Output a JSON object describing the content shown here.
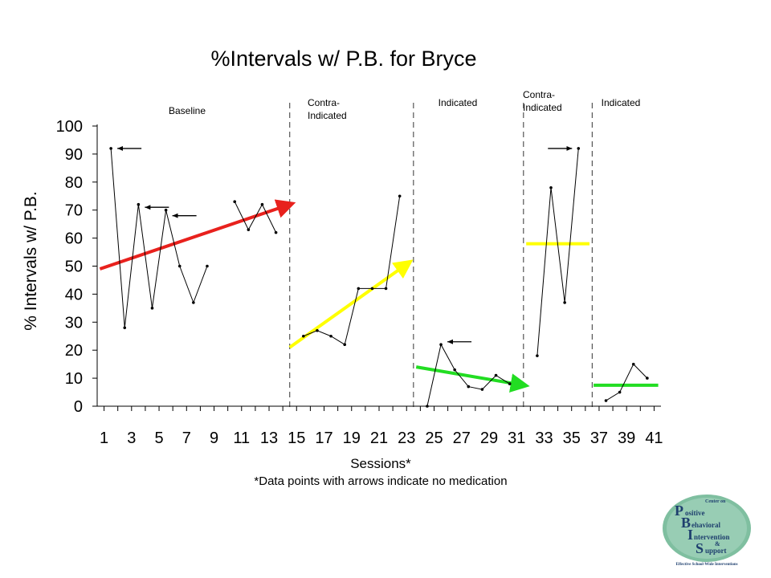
{
  "slide": {
    "title": "%Intervals w/ P.B. for Bryce",
    "footnote": "*Data points with arrows indicate no medication"
  },
  "chart_data": {
    "type": "line",
    "title": "%Intervals w/ P.B. for Bryce",
    "xlabel": "Sessions*",
    "ylabel": "% Intervals w/ P.B.",
    "xlim": [
      0,
      41
    ],
    "ylim": [
      0,
      100
    ],
    "yticks": [
      0,
      10,
      20,
      30,
      40,
      50,
      60,
      70,
      80,
      90,
      100
    ],
    "xticks": [
      1,
      3,
      5,
      7,
      9,
      11,
      13,
      15,
      17,
      19,
      21,
      23,
      25,
      27,
      29,
      31,
      33,
      35,
      37,
      39,
      41
    ],
    "grid": false,
    "phases": [
      {
        "label": "Baseline",
        "start": 0.5,
        "end": 14
      },
      {
        "label": "Contra-\nIndicated",
        "start": 14,
        "end": 23
      },
      {
        "label": "Indicated",
        "start": 23,
        "end": 31
      },
      {
        "label": "Contra-\nIndicated",
        "start": 31,
        "end": 36
      },
      {
        "label": "Indicated",
        "start": 36,
        "end": 41
      }
    ],
    "phase_lines": [
      14,
      23,
      31,
      36
    ],
    "segments": [
      {
        "points": [
          [
            1,
            92
          ],
          [
            2,
            28
          ],
          [
            3,
            72
          ],
          [
            4,
            35
          ],
          [
            5,
            70
          ],
          [
            6,
            50
          ],
          [
            7,
            37
          ],
          [
            8,
            50
          ]
        ]
      },
      {
        "points": [
          [
            10,
            73
          ],
          [
            11,
            63
          ],
          [
            12,
            72
          ],
          [
            13,
            62
          ]
        ]
      },
      {
        "points": [
          [
            15,
            25
          ],
          [
            16,
            27
          ],
          [
            17,
            25
          ],
          [
            18,
            22
          ],
          [
            19,
            42
          ],
          [
            20,
            42
          ],
          [
            21,
            42
          ],
          [
            22,
            75
          ]
        ]
      },
      {
        "points": [
          [
            24,
            0
          ],
          [
            25,
            22
          ],
          [
            26,
            13
          ],
          [
            27,
            7
          ],
          [
            28,
            6
          ],
          [
            29,
            11
          ],
          [
            30,
            8
          ]
        ]
      },
      {
        "points": [
          [
            32,
            18
          ],
          [
            33,
            78
          ],
          [
            34,
            37
          ],
          [
            35,
            92
          ]
        ]
      },
      {
        "points": [
          [
            37,
            2
          ],
          [
            38,
            5
          ],
          [
            39,
            15
          ],
          [
            40,
            10
          ]
        ]
      }
    ],
    "no_medication_points": [
      {
        "x": 1,
        "y": 92,
        "arrow": "left"
      },
      {
        "x": 3,
        "y": 71,
        "arrow": "left"
      },
      {
        "x": 5,
        "y": 68,
        "arrow": "left"
      },
      {
        "x": 25,
        "y": 23,
        "arrow": "left"
      },
      {
        "x": 35,
        "y": 92,
        "arrow": "right"
      }
    ],
    "trend_lines": [
      {
        "color": "#e8211d",
        "x": [
          0.2,
          14
        ],
        "y": [
          49,
          72
        ]
      },
      {
        "color": "#ffff00",
        "x": [
          14,
          22.6
        ],
        "y": [
          21,
          51
        ]
      },
      {
        "color": "#22dd22",
        "x": [
          23.2,
          31
        ],
        "y": [
          14,
          7.5
        ]
      },
      {
        "color": "#ffff00",
        "x": [
          31.2,
          35.8
        ],
        "y": [
          58,
          58
        ]
      },
      {
        "color": "#22dd22",
        "x": [
          36.1,
          40.8
        ],
        "y": [
          7.5,
          7.5
        ]
      }
    ]
  },
  "logo": {
    "line1": "Center on",
    "letters": [
      "P",
      "B",
      "I",
      "S"
    ],
    "words": [
      "ositive",
      "ehavioral",
      "ntervention",
      "upport"
    ],
    "amp": "&",
    "tagline": "Effective School-Wide Interventions"
  }
}
